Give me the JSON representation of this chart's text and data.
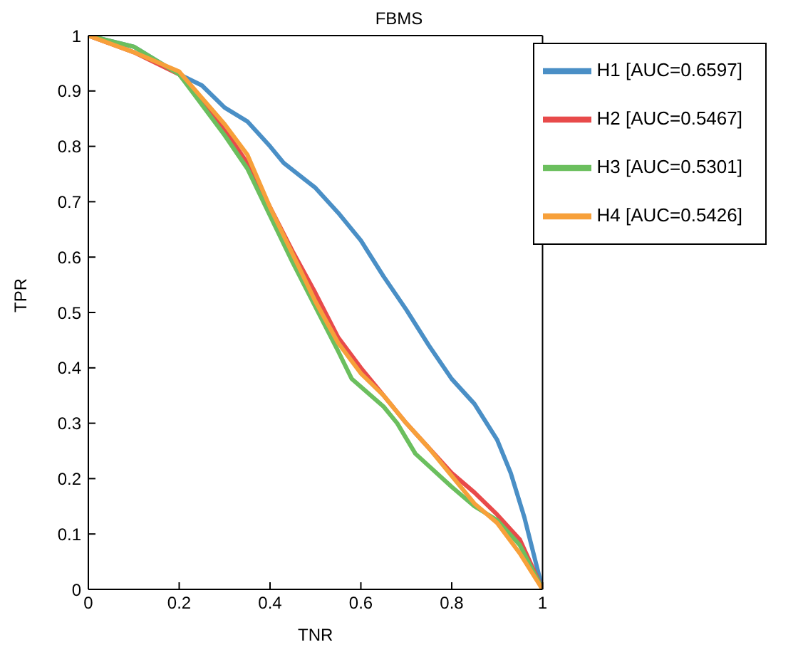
{
  "chart_data": {
    "type": "line",
    "title": "FBMS",
    "xlabel": "TNR",
    "ylabel": "TPR",
    "xlim": [
      0,
      1
    ],
    "ylim": [
      0,
      1
    ],
    "xticks": [
      0,
      0.2,
      0.4,
      0.6,
      0.8,
      1
    ],
    "yticks": [
      0,
      0.1,
      0.2,
      0.3,
      0.4,
      0.5,
      0.6,
      0.7,
      0.8,
      0.9,
      1
    ],
    "grid": false,
    "legend": "top right",
    "marker": "none",
    "line_style": "solid",
    "series": [
      {
        "name": "H1 [AUC=0.6597]",
        "color": "#4a8fc6",
        "x": [
          0,
          0.1,
          0.2,
          0.25,
          0.3,
          0.35,
          0.4,
          0.43,
          0.5,
          0.55,
          0.6,
          0.65,
          0.7,
          0.75,
          0.8,
          0.85,
          0.9,
          0.93,
          0.96,
          1
        ],
        "values": [
          1,
          0.98,
          0.93,
          0.91,
          0.87,
          0.845,
          0.8,
          0.77,
          0.725,
          0.68,
          0.63,
          0.565,
          0.505,
          0.44,
          0.38,
          0.335,
          0.27,
          0.21,
          0.13,
          0
        ]
      },
      {
        "name": "H2 [AUC=0.5467]",
        "color": "#e84a4a",
        "x": [
          0,
          0.1,
          0.2,
          0.3,
          0.35,
          0.4,
          0.45,
          0.5,
          0.55,
          0.6,
          0.65,
          0.7,
          0.75,
          0.8,
          0.85,
          0.9,
          0.95,
          1
        ],
        "values": [
          1,
          0.97,
          0.93,
          0.83,
          0.77,
          0.69,
          0.61,
          0.535,
          0.455,
          0.4,
          0.35,
          0.3,
          0.255,
          0.21,
          0.175,
          0.135,
          0.09,
          0
        ]
      },
      {
        "name": "H3 [AUC=0.5301]",
        "color": "#6bbf5e",
        "x": [
          0,
          0.1,
          0.2,
          0.3,
          0.35,
          0.4,
          0.45,
          0.5,
          0.55,
          0.58,
          0.65,
          0.68,
          0.72,
          0.8,
          0.85,
          0.9,
          0.95,
          1
        ],
        "values": [
          1,
          0.98,
          0.93,
          0.82,
          0.76,
          0.675,
          0.59,
          0.51,
          0.43,
          0.38,
          0.33,
          0.3,
          0.245,
          0.185,
          0.15,
          0.125,
          0.08,
          0
        ]
      },
      {
        "name": "H4 [AUC=0.5426]",
        "color": "#f7a03a",
        "x": [
          0,
          0.1,
          0.2,
          0.3,
          0.35,
          0.4,
          0.45,
          0.5,
          0.55,
          0.6,
          0.65,
          0.7,
          0.75,
          0.8,
          0.85,
          0.9,
          0.95,
          1
        ],
        "values": [
          1,
          0.97,
          0.935,
          0.84,
          0.785,
          0.69,
          0.605,
          0.52,
          0.445,
          0.39,
          0.35,
          0.3,
          0.255,
          0.205,
          0.155,
          0.12,
          0.065,
          0
        ]
      }
    ]
  }
}
